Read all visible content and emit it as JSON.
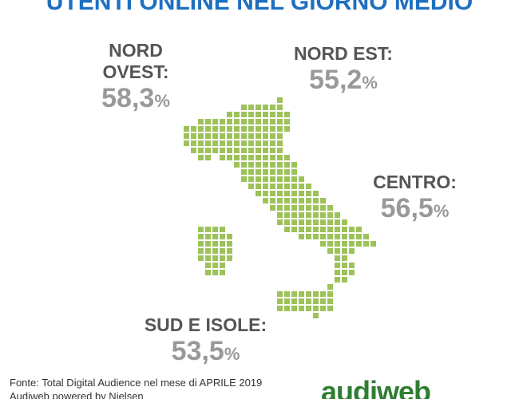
{
  "title": "UTENTI ONLINE NEL GIORNO MEDIO",
  "regions": [
    {
      "name": "NORD OVEST:",
      "value": "58,3",
      "unit": "%"
    },
    {
      "name": "NORD EST:",
      "value": "55,2",
      "unit": "%"
    },
    {
      "name": "CENTRO:",
      "value": "56,5",
      "unit": "%"
    },
    {
      "name": "SUD E ISOLE:",
      "value": "53,5",
      "unit": "%"
    }
  ],
  "footer": {
    "source": "Fonte: Total Digital Audience nel mese di APRILE 2019",
    "credit": "Audiweb powered by Nielsen"
  },
  "logo": "audiweb"
}
